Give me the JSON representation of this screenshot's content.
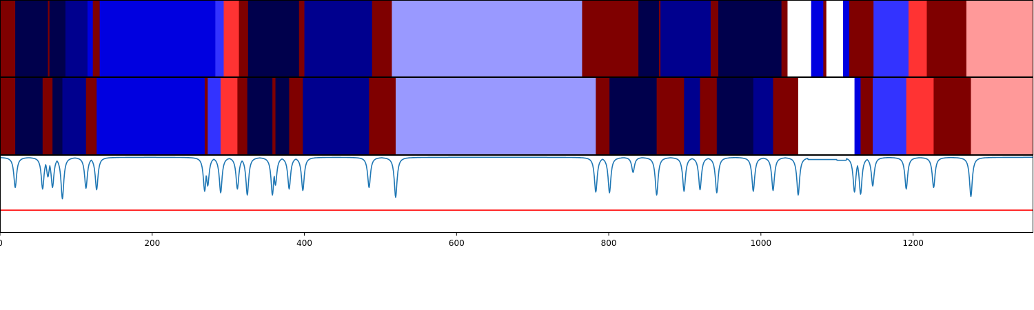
{
  "chart_data": [
    {
      "type": "heatmap",
      "title": "",
      "xlabel": "",
      "ylabel": "",
      "xlim": [
        0,
        1358
      ],
      "segments": [
        [
          0,
          "#7f0000"
        ],
        [
          20,
          "#00004c"
        ],
        [
          63,
          "#7f0000"
        ],
        [
          65,
          "#00004c"
        ],
        [
          86,
          "#00008e"
        ],
        [
          115,
          "#0000e0"
        ],
        [
          122,
          "#7f0000"
        ],
        [
          131,
          "#0000e0"
        ],
        [
          283,
          "#3333ff"
        ],
        [
          294,
          "#ff3333"
        ],
        [
          314,
          "#7f0000"
        ],
        [
          326,
          "#00004c"
        ],
        [
          393,
          "#7f0000"
        ],
        [
          400,
          "#00008e"
        ],
        [
          489,
          "#7f0000"
        ],
        [
          515,
          "#9999ff"
        ],
        [
          765,
          "#7f0000"
        ],
        [
          839,
          "#00004c"
        ],
        [
          866,
          "#7f0000"
        ],
        [
          868,
          "#00008e"
        ],
        [
          934,
          "#7f0000"
        ],
        [
          944,
          "#00004c"
        ],
        [
          1027,
          "#7f0000"
        ],
        [
          1035,
          "#ffffff"
        ],
        [
          1066,
          "#0000e0"
        ],
        [
          1082,
          "#7f0000"
        ],
        [
          1086,
          "#ffffff"
        ],
        [
          1108,
          "#0000e0"
        ],
        [
          1116,
          "#7f0000"
        ],
        [
          1148,
          "#3333ff"
        ],
        [
          1194,
          "#ff3333"
        ],
        [
          1218,
          "#7f0000"
        ],
        [
          1270,
          "#ff9999"
        ]
      ]
    },
    {
      "type": "heatmap",
      "title": "",
      "xlabel": "",
      "ylabel": "",
      "xlim": [
        0,
        1358
      ],
      "segments": [
        [
          0,
          "#7f0000"
        ],
        [
          20,
          "#00004c"
        ],
        [
          56,
          "#7f0000"
        ],
        [
          69,
          "#00004c"
        ],
        [
          82,
          "#00008e"
        ],
        [
          113,
          "#7f0000"
        ],
        [
          127,
          "#0000e0"
        ],
        [
          269,
          "#7f0000"
        ],
        [
          273,
          "#3333ff"
        ],
        [
          290,
          "#ff3333"
        ],
        [
          312,
          "#7f0000"
        ],
        [
          325,
          "#00004c"
        ],
        [
          358,
          "#7f0000"
        ],
        [
          362,
          "#00004c"
        ],
        [
          380,
          "#7f0000"
        ],
        [
          398,
          "#00008e"
        ],
        [
          485,
          "#7f0000"
        ],
        [
          520,
          "#9999ff"
        ],
        [
          783,
          "#7f0000"
        ],
        [
          801,
          "#00004c"
        ],
        [
          863,
          "#7f0000"
        ],
        [
          899,
          "#00008e"
        ],
        [
          920,
          "#7f0000"
        ],
        [
          942,
          "#00004c"
        ],
        [
          990,
          "#00008e"
        ],
        [
          1016,
          "#7f0000"
        ],
        [
          1049,
          "#ffffff"
        ],
        [
          1123,
          "#0000e0"
        ],
        [
          1131,
          "#7f0000"
        ],
        [
          1147,
          "#3333ff"
        ],
        [
          1191,
          "#ff3333"
        ],
        [
          1227,
          "#7f0000"
        ],
        [
          1276,
          "#ff9999"
        ]
      ]
    },
    {
      "type": "line",
      "title": "",
      "xlabel": "",
      "ylabel": "",
      "xlim": [
        0,
        1358
      ],
      "ylim": [
        -1.0,
        0.03
      ],
      "xticks": [
        0,
        200,
        400,
        600,
        800,
        1000,
        1200
      ],
      "grid": false,
      "series": [
        {
          "color": "#1f77b4",
          "baseline": 0,
          "dips": [
            [
              20,
              -0.4
            ],
            [
              56,
              -0.42
            ],
            [
              63,
              -0.26
            ],
            [
              69,
              -0.4
            ],
            [
              82,
              -0.55
            ],
            [
              113,
              -0.41
            ],
            [
              127,
              -0.43
            ],
            [
              269,
              -0.45
            ],
            [
              273,
              -0.38
            ],
            [
              290,
              -0.47
            ],
            [
              312,
              -0.42
            ],
            [
              325,
              -0.5
            ],
            [
              358,
              -0.5
            ],
            [
              362,
              -0.37
            ],
            [
              380,
              -0.42
            ],
            [
              398,
              -0.44
            ],
            [
              485,
              -0.4
            ],
            [
              520,
              -0.53
            ],
            [
              783,
              -0.46
            ],
            [
              801,
              -0.47
            ],
            [
              832,
              -0.2
            ],
            [
              863,
              -0.5
            ],
            [
              899,
              -0.45
            ],
            [
              920,
              -0.43
            ],
            [
              942,
              -0.47
            ],
            [
              990,
              -0.45
            ],
            [
              1016,
              -0.44
            ],
            [
              1049,
              -0.5
            ],
            [
              1123,
              -0.46
            ],
            [
              1131,
              -0.49
            ],
            [
              1147,
              -0.38
            ],
            [
              1191,
              -0.42
            ],
            [
              1227,
              -0.4
            ],
            [
              1276,
              -0.52
            ]
          ],
          "plateaus": [
            [
              1062,
              1100,
              -0.03
            ],
            [
              1100,
              1112,
              -0.04
            ]
          ]
        }
      ],
      "hlines": [
        {
          "y": -0.7,
          "color": "#ff0000"
        }
      ]
    }
  ]
}
